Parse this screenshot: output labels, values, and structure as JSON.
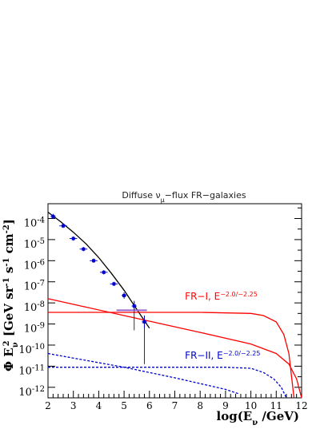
{
  "chart_data": {
    "type": "line",
    "title": "Diffuse ν",
    "title_sub": "μ",
    "title_rest": "−flux FR−galaxies",
    "xlabel": "log(E",
    "xlabel_sub": "ν",
    "xlabel_rest": " /GeV)",
    "ylabel": "Φ E",
    "ylabel_sub": "ν",
    "ylabel_sup": "2",
    "ylabel_rest": " [GeV sr",
    "ylabel_e1": "-1",
    "ylabel_s": " s",
    "ylabel_e2": "-1",
    "ylabel_cm": " cm",
    "ylabel_e3": "-2",
    "ylabel_end": "]",
    "xlim": [
      2,
      12
    ],
    "ylim": [
      -12.5,
      -3.3
    ],
    "x_ticks": [
      "2",
      "3",
      "4",
      "5",
      "6",
      "7",
      "8",
      "9",
      "10",
      "11",
      "12"
    ],
    "y_ticks": [
      {
        "base": "10",
        "exp": "-4",
        "value": -4
      },
      {
        "base": "10",
        "exp": "-5",
        "value": -5
      },
      {
        "base": "10",
        "exp": "-6",
        "value": -6
      },
      {
        "base": "10",
        "exp": "-7",
        "value": -7
      },
      {
        "base": "10",
        "exp": "-8",
        "value": -8
      },
      {
        "base": "10",
        "exp": "-9",
        "value": -9
      },
      {
        "base": "10",
        "exp": "-10",
        "value": -10
      },
      {
        "base": "10",
        "exp": "-11",
        "value": -11
      },
      {
        "base": "10",
        "exp": "-12",
        "value": -12
      }
    ],
    "series": [
      {
        "color": "#000000",
        "style": "solid",
        "points": [
          [
            2.0,
            -3.7
          ],
          [
            2.5,
            -4.15
          ],
          [
            3.0,
            -4.65
          ],
          [
            3.5,
            -5.2
          ],
          [
            4.0,
            -5.85
          ],
          [
            4.5,
            -6.6
          ],
          [
            5.0,
            -7.4
          ],
          [
            5.5,
            -8.3
          ],
          [
            6.0,
            -9.2
          ]
        ]
      },
      {
        "color": "#ff0000",
        "style": "solid",
        "points": [
          [
            2.0,
            -7.8
          ],
          [
            5.0,
            -8.6
          ],
          [
            8.0,
            -9.4
          ],
          [
            10.0,
            -9.95
          ],
          [
            11.0,
            -10.4
          ],
          [
            11.5,
            -10.9
          ],
          [
            11.8,
            -11.6
          ],
          [
            12.0,
            -12.5
          ]
        ]
      },
      {
        "color": "#ff0000",
        "style": "solid",
        "points": [
          [
            2.0,
            -8.45
          ],
          [
            8.0,
            -8.45
          ],
          [
            10.0,
            -8.5
          ],
          [
            10.5,
            -8.6
          ],
          [
            11.0,
            -8.9
          ],
          [
            11.3,
            -9.5
          ],
          [
            11.5,
            -10.4
          ],
          [
            11.7,
            -12.5
          ]
        ]
      },
      {
        "color": "#0000cc",
        "style": "dashed",
        "points": [
          [
            2.0,
            -10.4
          ],
          [
            5.0,
            -11.05
          ],
          [
            7.0,
            -11.55
          ],
          [
            9.0,
            -12.1
          ],
          [
            9.5,
            -12.3
          ]
        ]
      },
      {
        "color": "#0000cc",
        "style": "dashed",
        "points": [
          [
            2.0,
            -11.05
          ],
          [
            9.0,
            -11.05
          ],
          [
            10.0,
            -11.1
          ],
          [
            10.5,
            -11.3
          ],
          [
            10.9,
            -11.6
          ],
          [
            11.2,
            -12.0
          ],
          [
            11.4,
            -12.5
          ]
        ]
      }
    ],
    "data_points": {
      "color": "#0000cc",
      "points": [
        {
          "x": 2.2,
          "y": -3.9,
          "xerr": 0.1,
          "yerr": 0.12
        },
        {
          "x": 2.6,
          "y": -4.35,
          "xerr": 0.15,
          "yerr": 0.1
        },
        {
          "x": 3.0,
          "y": -4.95,
          "xerr": 0.15,
          "yerr": 0.1
        },
        {
          "x": 3.4,
          "y": -5.45,
          "xerr": 0.15,
          "yerr": 0.1
        },
        {
          "x": 3.8,
          "y": -6.0,
          "xerr": 0.15,
          "yerr": 0.1
        },
        {
          "x": 4.2,
          "y": -6.55,
          "xerr": 0.15,
          "yerr": 0.1
        },
        {
          "x": 4.6,
          "y": -7.1,
          "xerr": 0.15,
          "yerr": 0.1
        },
        {
          "x": 5.0,
          "y": -7.65,
          "xerr": 0.1,
          "yerr": 0.15
        },
        {
          "x": 5.4,
          "y": -8.15,
          "xerr": 0.1,
          "yerr": 0.2
        },
        {
          "x": 5.8,
          "y": -8.9,
          "xerr": 0.1,
          "yerr": 0.3
        }
      ]
    },
    "limit_line": {
      "color": "#000000",
      "x": [
        5.4,
        5.8
      ],
      "y_top": [
        -7.9,
        -8.6
      ],
      "y_bottom": [
        -9.3,
        -10.9
      ]
    },
    "upper_bar": {
      "color": "#9966cc",
      "x": [
        4.7,
        5.9
      ],
      "y": -8.35
    },
    "annotations": [
      {
        "text": "FR−I, E",
        "sup": "−2.0/−2.25",
        "color": "#ff0000",
        "x": 7.4,
        "y": -7.85
      },
      {
        "text": "FR−II, E",
        "sup": "−2.0/−2.25",
        "color": "#0000cc",
        "x": 7.4,
        "y": -10.65
      }
    ],
    "grid": false,
    "legend": "none"
  }
}
